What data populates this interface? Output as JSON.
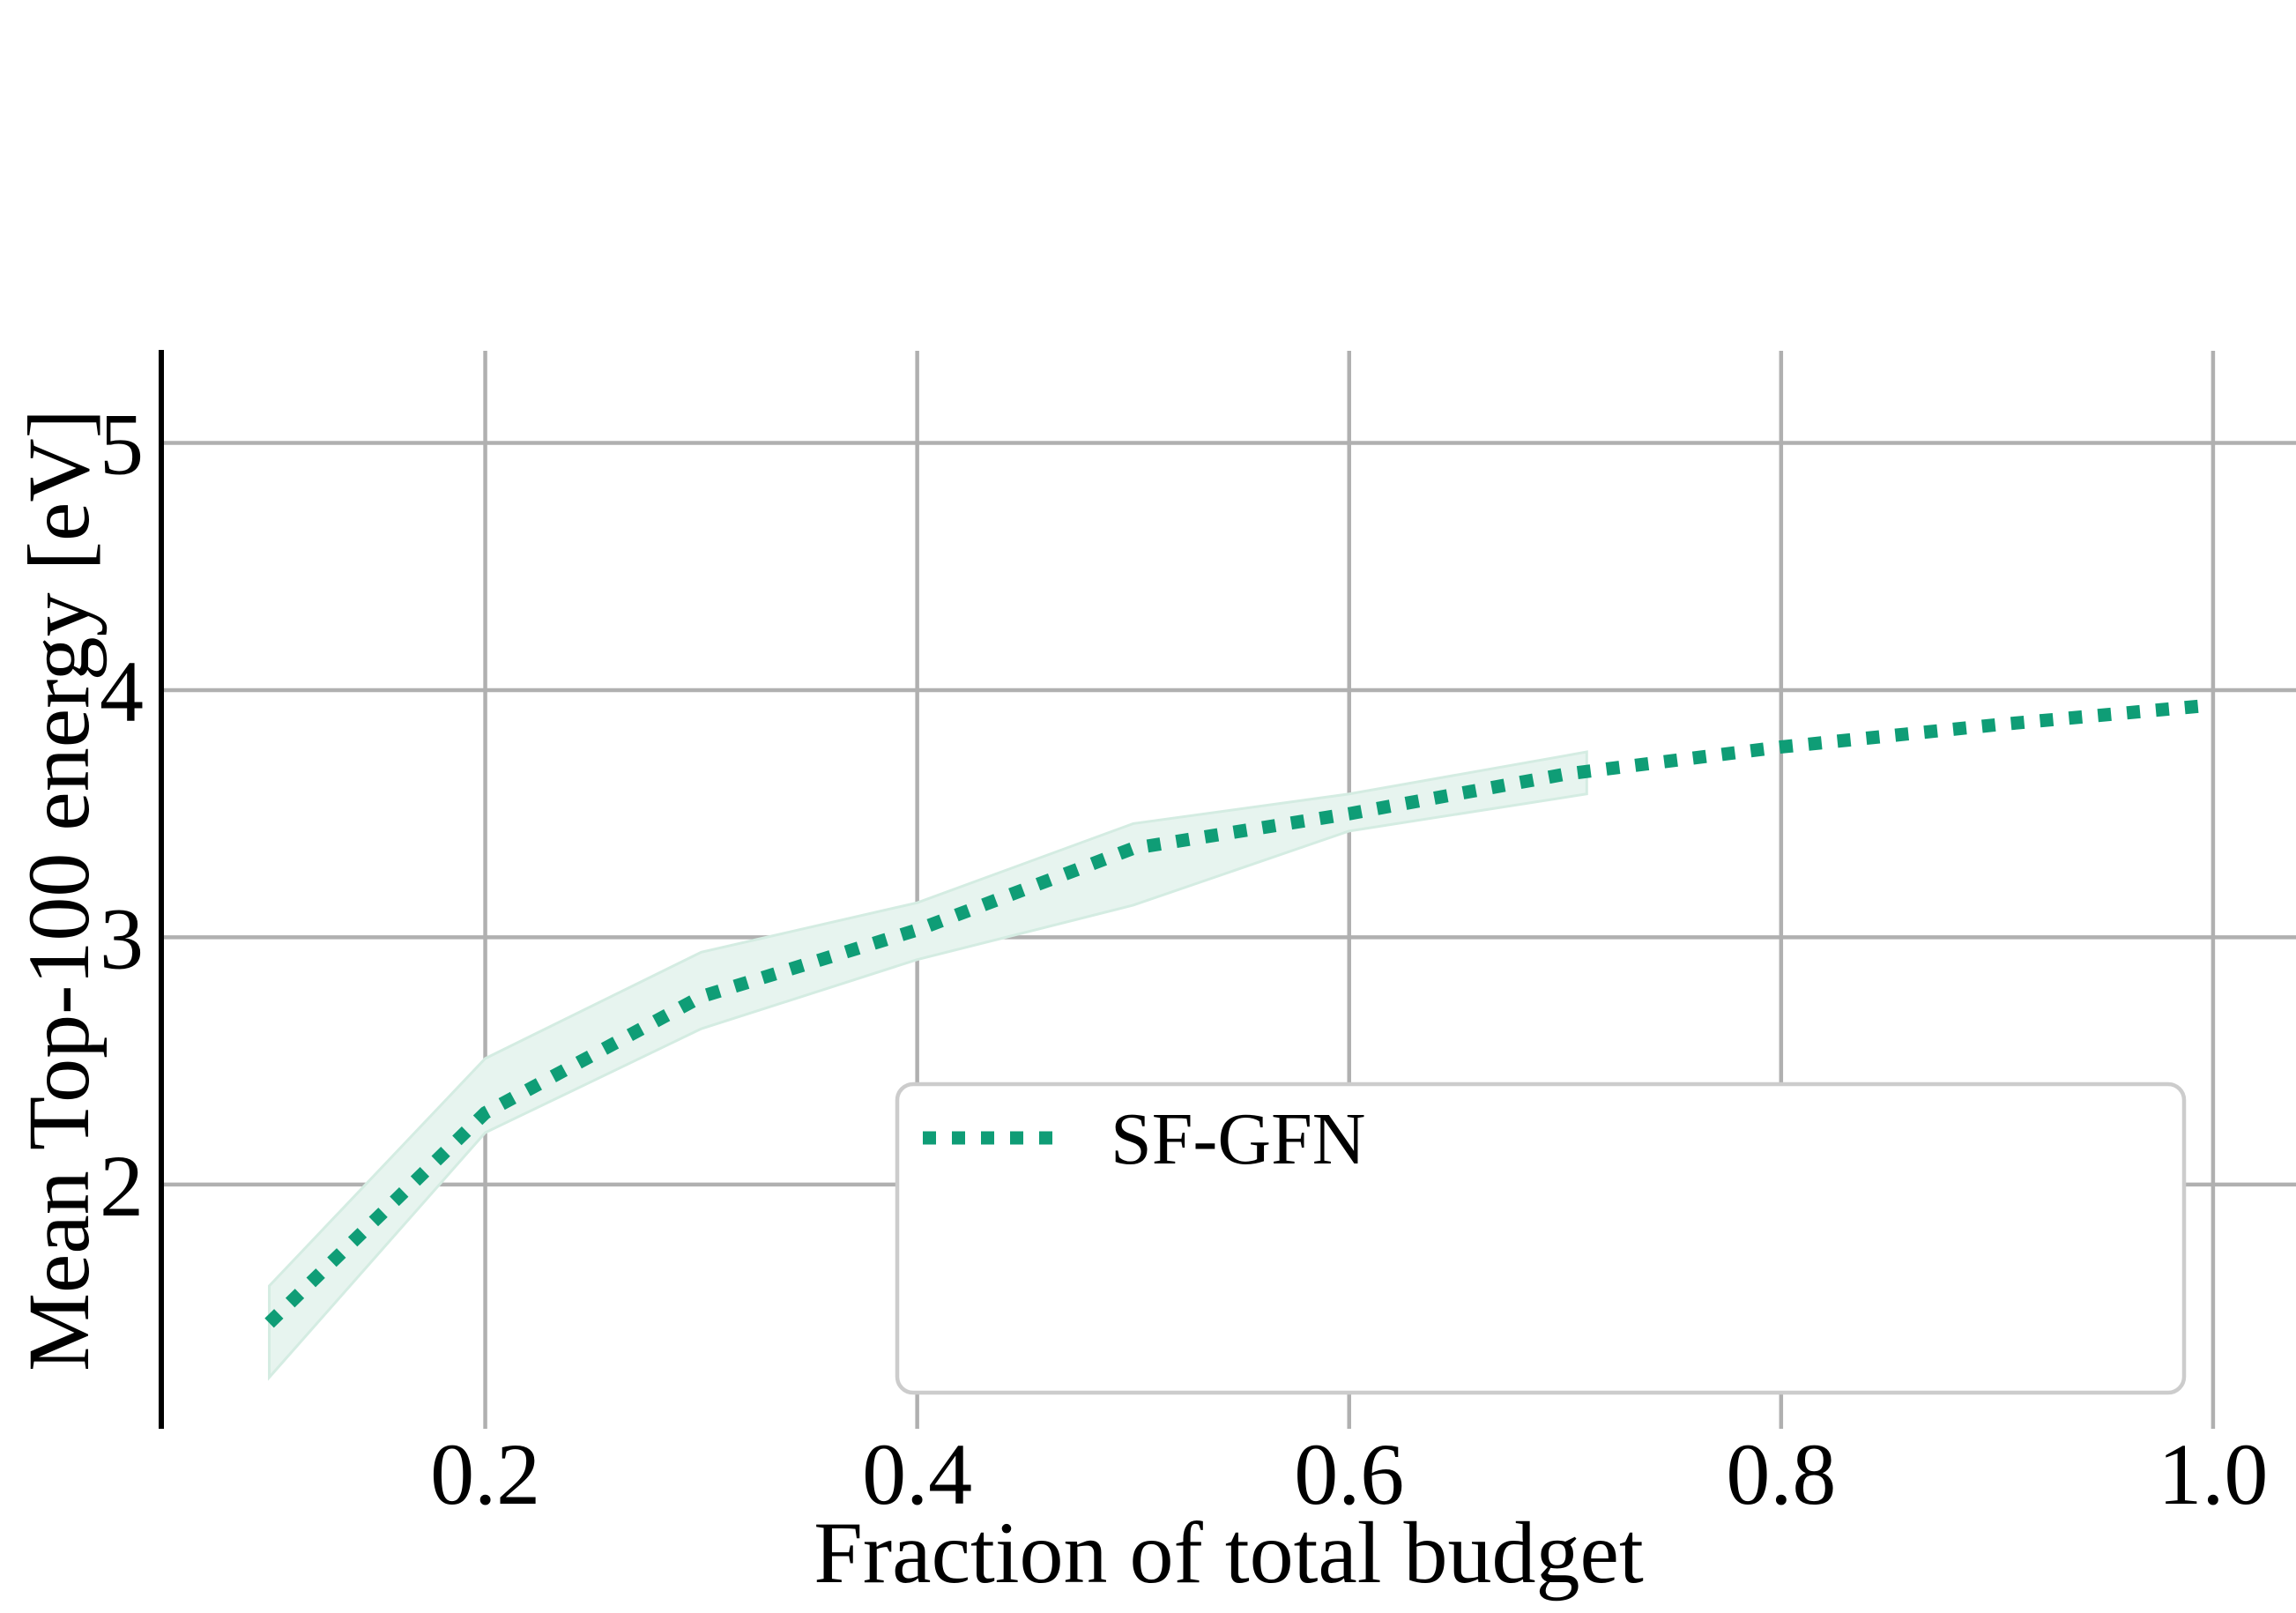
{
  "chart_data": {
    "type": "line",
    "title": "",
    "xlabel": "Fraction of total budget",
    "ylabel": "Mean Top-100 energy [eV]",
    "xlim": [
      0.05,
      1.0384
    ],
    "ylim": [
      1.012,
      5.3726
    ],
    "grid": true,
    "x_ticks": [
      0.2,
      0.4,
      0.6,
      0.8,
      1.0
    ],
    "x_tick_labels": [
      "0.2",
      "0.4",
      "0.6",
      "0.8",
      "1.0"
    ],
    "y_ticks": [
      5,
      4,
      3,
      2
    ],
    "y_tick_labels": [
      "5",
      "4",
      "3",
      "2"
    ],
    "series": [
      {
        "name": "SF-GFN",
        "color": "#0f9d76",
        "line_style": "dotted",
        "x": [
          0.1,
          0.2,
          0.3,
          0.4,
          0.5,
          0.6,
          0.7,
          0.8,
          0.9,
          1.0
        ],
        "y": [
          1.44,
          2.29,
          2.76,
          3.03,
          3.36,
          3.5,
          3.66,
          3.77,
          3.86,
          3.94
        ],
        "band": {
          "x": [
            0.1,
            0.2,
            0.3,
            0.4,
            0.5,
            0.6,
            0.71
          ],
          "lower": [
            1.22,
            2.21,
            2.63,
            2.91,
            3.13,
            3.43,
            3.58
          ],
          "upper": [
            1.59,
            2.51,
            2.94,
            3.14,
            3.46,
            3.58,
            3.75
          ],
          "fill_color": "#e7f4ef",
          "edge_color": "#d4ece2"
        }
      }
    ],
    "legend": {
      "position": "lower right",
      "entries": [
        {
          "label": "SF-GFN",
          "marker": "dotted-line",
          "color": "#0f9d76"
        }
      ]
    },
    "colors": {
      "grid": "#b0b0b0",
      "spine": "#000000",
      "text": "#000000",
      "legend_border": "#cccccc",
      "legend_fill": "#ffffff"
    }
  }
}
